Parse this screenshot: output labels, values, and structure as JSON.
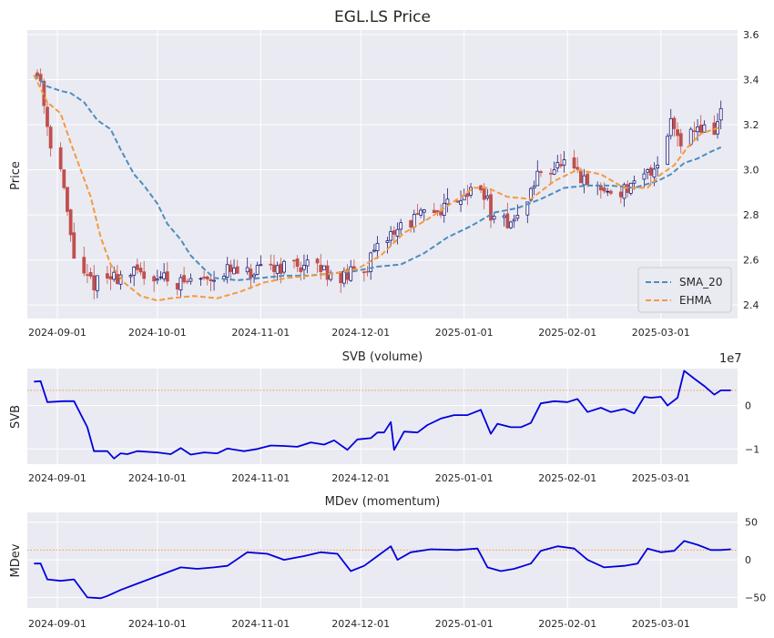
{
  "figure": {
    "panel_bg": "#eaeaf2",
    "grid_color": "#ffffff",
    "text_color": "#262626"
  },
  "chart_data": [
    {
      "type": "candlestick",
      "title": "EGL.LS Price",
      "ylabel": "Price",
      "xlabel": "",
      "x_range": [
        "2024-08-23",
        "2025-03-24"
      ],
      "ylim": [
        2.34,
        3.62
      ],
      "yticks": [
        2.4,
        2.6,
        2.8,
        3.0,
        3.2,
        3.4,
        3.6
      ],
      "ytick_labels": [
        "2.4",
        "2.6",
        "2.8",
        "3.0",
        "3.2",
        "3.4",
        "3.6"
      ],
      "xticks": [
        "2024-09-01",
        "2024-10-01",
        "2024-11-01",
        "2024-12-01",
        "2025-01-01",
        "2025-02-01",
        "2025-03-01"
      ],
      "grid": true,
      "legend": "lower-right",
      "up_color": "#1f1f7a",
      "down_color": "#c0504d",
      "candle_anchors": [
        [
          "2024-08-25",
          3.44
        ],
        [
          "2024-08-27",
          3.4
        ],
        [
          "2024-08-29",
          3.2
        ],
        [
          "2024-08-31",
          3.05
        ],
        [
          "2024-09-02",
          3.0
        ],
        [
          "2024-09-04",
          2.8
        ],
        [
          "2024-09-06",
          2.62
        ],
        [
          "2024-09-09",
          2.52
        ],
        [
          "2024-09-12",
          2.5
        ],
        [
          "2024-09-17",
          2.52
        ],
        [
          "2024-09-23",
          2.54
        ],
        [
          "2024-10-01",
          2.53
        ],
        [
          "2024-10-08",
          2.5
        ],
        [
          "2024-10-15",
          2.52
        ],
        [
          "2024-10-22",
          2.55
        ],
        [
          "2024-10-29",
          2.53
        ],
        [
          "2024-11-05",
          2.57
        ],
        [
          "2024-11-12",
          2.58
        ],
        [
          "2024-11-19",
          2.56
        ],
        [
          "2024-11-26",
          2.52
        ],
        [
          "2024-12-03",
          2.58
        ],
        [
          "2024-12-10",
          2.72
        ],
        [
          "2024-12-17",
          2.78
        ],
        [
          "2024-12-24",
          2.82
        ],
        [
          "2025-01-01",
          2.9
        ],
        [
          "2025-01-07",
          2.9
        ],
        [
          "2025-01-10",
          2.76
        ],
        [
          "2025-01-17",
          2.78
        ],
        [
          "2025-01-24",
          3.0
        ],
        [
          "2025-01-31",
          3.02
        ],
        [
          "2025-02-07",
          2.93
        ],
        [
          "2025-02-14",
          2.9
        ],
        [
          "2025-02-21",
          2.92
        ],
        [
          "2025-02-28",
          3.03
        ],
        [
          "2025-03-04",
          3.22
        ],
        [
          "2025-03-07",
          3.14
        ],
        [
          "2025-03-12",
          3.19
        ],
        [
          "2025-03-17",
          3.17
        ],
        [
          "2025-03-19",
          3.26
        ]
      ],
      "series": [
        {
          "name": "SMA_20",
          "style": "dashed",
          "color": "#4c8ebf",
          "points": [
            [
              "2024-08-25",
              3.42
            ],
            [
              "2024-08-29",
              3.37
            ],
            [
              "2024-09-02",
              3.35
            ],
            [
              "2024-09-05",
              3.34
            ],
            [
              "2024-09-09",
              3.3
            ],
            [
              "2024-09-13",
              3.22
            ],
            [
              "2024-09-17",
              3.18
            ],
            [
              "2024-09-20",
              3.09
            ],
            [
              "2024-09-24",
              2.98
            ],
            [
              "2024-09-27",
              2.93
            ],
            [
              "2024-10-01",
              2.85
            ],
            [
              "2024-10-04",
              2.76
            ],
            [
              "2024-10-08",
              2.69
            ],
            [
              "2024-10-11",
              2.62
            ],
            [
              "2024-10-15",
              2.56
            ],
            [
              "2024-10-18",
              2.52
            ],
            [
              "2024-10-25",
              2.51
            ],
            [
              "2024-11-01",
              2.52
            ],
            [
              "2024-11-08",
              2.53
            ],
            [
              "2024-11-15",
              2.53
            ],
            [
              "2024-11-22",
              2.54
            ],
            [
              "2024-11-29",
              2.55
            ],
            [
              "2024-12-06",
              2.57
            ],
            [
              "2024-12-13",
              2.58
            ],
            [
              "2024-12-20",
              2.63
            ],
            [
              "2024-12-27",
              2.7
            ],
            [
              "2025-01-03",
              2.75
            ],
            [
              "2025-01-10",
              2.81
            ],
            [
              "2025-01-17",
              2.83
            ],
            [
              "2025-01-24",
              2.87
            ],
            [
              "2025-01-31",
              2.92
            ],
            [
              "2025-02-07",
              2.93
            ],
            [
              "2025-02-14",
              2.93
            ],
            [
              "2025-02-21",
              2.92
            ],
            [
              "2025-02-28",
              2.95
            ],
            [
              "2025-03-04",
              2.98
            ],
            [
              "2025-03-08",
              3.03
            ],
            [
              "2025-03-12",
              3.05
            ],
            [
              "2025-03-16",
              3.08
            ],
            [
              "2025-03-19",
              3.1
            ]
          ]
        },
        {
          "name": "EHMA",
          "style": "dashed",
          "color": "#f59a3e",
          "points": [
            [
              "2024-08-25",
              3.42
            ],
            [
              "2024-08-29",
              3.3
            ],
            [
              "2024-09-02",
              3.25
            ],
            [
              "2024-09-05",
              3.12
            ],
            [
              "2024-09-08",
              3.0
            ],
            [
              "2024-09-11",
              2.88
            ],
            [
              "2024-09-14",
              2.7
            ],
            [
              "2024-09-17",
              2.58
            ],
            [
              "2024-09-21",
              2.5
            ],
            [
              "2024-09-26",
              2.44
            ],
            [
              "2024-10-01",
              2.42
            ],
            [
              "2024-10-05",
              2.43
            ],
            [
              "2024-10-12",
              2.44
            ],
            [
              "2024-10-19",
              2.43
            ],
            [
              "2024-10-26",
              2.46
            ],
            [
              "2024-11-02",
              2.5
            ],
            [
              "2024-11-09",
              2.52
            ],
            [
              "2024-11-16",
              2.53
            ],
            [
              "2024-11-23",
              2.54
            ],
            [
              "2024-11-30",
              2.56
            ],
            [
              "2024-12-07",
              2.62
            ],
            [
              "2024-12-14",
              2.72
            ],
            [
              "2024-12-21",
              2.78
            ],
            [
              "2024-12-28",
              2.85
            ],
            [
              "2025-01-04",
              2.92
            ],
            [
              "2025-01-08",
              2.92
            ],
            [
              "2025-01-14",
              2.88
            ],
            [
              "2025-01-21",
              2.87
            ],
            [
              "2025-01-28",
              2.95
            ],
            [
              "2025-02-04",
              3.0
            ],
            [
              "2025-02-11",
              2.98
            ],
            [
              "2025-02-18",
              2.92
            ],
            [
              "2025-02-25",
              2.92
            ],
            [
              "2025-03-01",
              2.98
            ],
            [
              "2025-03-05",
              3.02
            ],
            [
              "2025-03-09",
              3.1
            ],
            [
              "2025-03-13",
              3.16
            ],
            [
              "2025-03-19",
              3.19
            ]
          ]
        }
      ]
    },
    {
      "type": "line",
      "title": "SVB (volume)",
      "ylabel": "SVB",
      "xlabel": "",
      "scale_label": "1e7",
      "ylim": [
        -1.35,
        0.85
      ],
      "yticks": [
        -1,
        0
      ],
      "ytick_labels": [
        "−1",
        "0"
      ],
      "xticks": [
        "2024-09-01",
        "2024-10-01",
        "2024-11-01",
        "2024-12-01",
        "2025-01-01",
        "2025-02-01",
        "2025-03-01"
      ],
      "grid": true,
      "hline": {
        "value": 0.35,
        "color": "#f59a3e",
        "style": "dotted"
      },
      "series": [
        {
          "name": "",
          "color": "#0000dd",
          "points": [
            [
              "2024-08-25",
              0.55
            ],
            [
              "2024-08-27",
              0.56
            ],
            [
              "2024-08-29",
              0.08
            ],
            [
              "2024-09-03",
              0.1
            ],
            [
              "2024-09-06",
              0.1
            ],
            [
              "2024-09-10",
              -0.5
            ],
            [
              "2024-09-12",
              -1.05
            ],
            [
              "2024-09-16",
              -1.05
            ],
            [
              "2024-09-18",
              -1.22
            ],
            [
              "2024-09-20",
              -1.1
            ],
            [
              "2024-09-22",
              -1.12
            ],
            [
              "2024-09-25",
              -1.05
            ],
            [
              "2024-10-01",
              -1.08
            ],
            [
              "2024-10-05",
              -1.12
            ],
            [
              "2024-10-08",
              -0.98
            ],
            [
              "2024-10-11",
              -1.13
            ],
            [
              "2024-10-15",
              -1.08
            ],
            [
              "2024-10-19",
              -1.1
            ],
            [
              "2024-10-22",
              -0.99
            ],
            [
              "2024-10-27",
              -1.05
            ],
            [
              "2024-10-31",
              -1.0
            ],
            [
              "2024-11-04",
              -0.92
            ],
            [
              "2024-11-08",
              -0.93
            ],
            [
              "2024-11-12",
              -0.95
            ],
            [
              "2024-11-16",
              -0.85
            ],
            [
              "2024-11-20",
              -0.9
            ],
            [
              "2024-11-23",
              -0.8
            ],
            [
              "2024-11-27",
              -1.02
            ],
            [
              "2024-11-30",
              -0.78
            ],
            [
              "2024-12-04",
              -0.75
            ],
            [
              "2024-12-06",
              -0.62
            ],
            [
              "2024-12-08",
              -0.62
            ],
            [
              "2024-12-10",
              -0.38
            ],
            [
              "2024-12-11",
              -1.02
            ],
            [
              "2024-12-14",
              -0.6
            ],
            [
              "2024-12-18",
              -0.62
            ],
            [
              "2024-12-21",
              -0.45
            ],
            [
              "2024-12-25",
              -0.3
            ],
            [
              "2024-12-29",
              -0.22
            ],
            [
              "2025-01-02",
              -0.22
            ],
            [
              "2025-01-06",
              -0.1
            ],
            [
              "2025-01-09",
              -0.65
            ],
            [
              "2025-01-11",
              -0.42
            ],
            [
              "2025-01-15",
              -0.5
            ],
            [
              "2025-01-18",
              -0.5
            ],
            [
              "2025-01-21",
              -0.4
            ],
            [
              "2025-01-24",
              0.05
            ],
            [
              "2025-01-28",
              0.1
            ],
            [
              "2025-02-01",
              0.08
            ],
            [
              "2025-02-04",
              0.15
            ],
            [
              "2025-02-07",
              -0.15
            ],
            [
              "2025-02-11",
              -0.05
            ],
            [
              "2025-02-14",
              -0.15
            ],
            [
              "2025-02-18",
              -0.08
            ],
            [
              "2025-02-21",
              -0.18
            ],
            [
              "2025-02-24",
              0.2
            ],
            [
              "2025-02-26",
              0.18
            ],
            [
              "2025-03-01",
              0.2
            ],
            [
              "2025-03-03",
              0.0
            ],
            [
              "2025-03-06",
              0.18
            ],
            [
              "2025-03-08",
              0.8
            ],
            [
              "2025-03-11",
              0.62
            ],
            [
              "2025-03-14",
              0.45
            ],
            [
              "2025-03-17",
              0.25
            ],
            [
              "2025-03-19",
              0.35
            ],
            [
              "2025-03-22",
              0.35
            ]
          ]
        }
      ]
    },
    {
      "type": "line",
      "title": "MDev (momentum)",
      "ylabel": "MDev",
      "xlabel": "",
      "ylim": [
        -64,
        63
      ],
      "yticks": [
        -50,
        0,
        50
      ],
      "ytick_labels": [
        "−50",
        "0",
        "50"
      ],
      "xticks": [
        "2024-09-01",
        "2024-10-01",
        "2024-11-01",
        "2024-12-01",
        "2025-01-01",
        "2025-02-01",
        "2025-03-01"
      ],
      "grid": true,
      "hline": {
        "value": 13,
        "color": "#f59a3e",
        "style": "dotted"
      },
      "series": [
        {
          "name": "",
          "color": "#0000dd",
          "points": [
            [
              "2024-08-25",
              -5
            ],
            [
              "2024-08-27",
              -5
            ],
            [
              "2024-08-29",
              -26
            ],
            [
              "2024-09-02",
              -28
            ],
            [
              "2024-09-06",
              -26
            ],
            [
              "2024-09-10",
              -50
            ],
            [
              "2024-09-14",
              -51
            ],
            [
              "2024-09-16",
              -48
            ],
            [
              "2024-09-20",
              -40
            ],
            [
              "2024-09-26",
              -30
            ],
            [
              "2024-10-02",
              -20
            ],
            [
              "2024-10-08",
              -10
            ],
            [
              "2024-10-13",
              -12
            ],
            [
              "2024-10-18",
              -10
            ],
            [
              "2024-10-22",
              -8
            ],
            [
              "2024-10-28",
              10
            ],
            [
              "2024-11-03",
              8
            ],
            [
              "2024-11-08",
              0
            ],
            [
              "2024-11-14",
              5
            ],
            [
              "2024-11-19",
              10
            ],
            [
              "2024-11-24",
              8
            ],
            [
              "2024-11-28",
              -15
            ],
            [
              "2024-12-02",
              -8
            ],
            [
              "2024-12-06",
              5
            ],
            [
              "2024-12-10",
              18
            ],
            [
              "2024-12-12",
              0
            ],
            [
              "2024-12-16",
              10
            ],
            [
              "2024-12-22",
              14
            ],
            [
              "2024-12-30",
              13
            ],
            [
              "2025-01-05",
              15
            ],
            [
              "2025-01-08",
              -10
            ],
            [
              "2025-01-12",
              -15
            ],
            [
              "2025-01-16",
              -12
            ],
            [
              "2025-01-21",
              -5
            ],
            [
              "2025-01-24",
              12
            ],
            [
              "2025-01-29",
              18
            ],
            [
              "2025-02-03",
              15
            ],
            [
              "2025-02-07",
              0
            ],
            [
              "2025-02-12",
              -10
            ],
            [
              "2025-02-18",
              -8
            ],
            [
              "2025-02-22",
              -5
            ],
            [
              "2025-02-25",
              15
            ],
            [
              "2025-03-01",
              10
            ],
            [
              "2025-03-05",
              12
            ],
            [
              "2025-03-08",
              25
            ],
            [
              "2025-03-12",
              20
            ],
            [
              "2025-03-16",
              13
            ],
            [
              "2025-03-19",
              13
            ],
            [
              "2025-03-22",
              14
            ]
          ]
        }
      ]
    }
  ]
}
